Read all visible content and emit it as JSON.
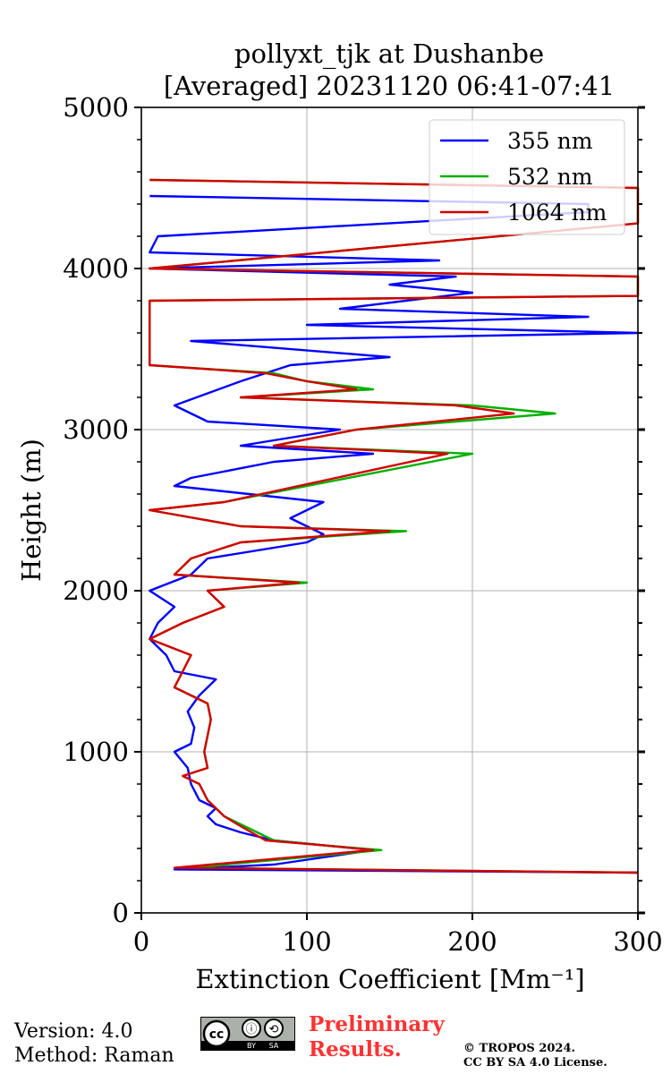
{
  "chart_data": {
    "type": "line",
    "title": "pollyxt_tjk at Dushanbe",
    "subtitle": "[Averaged] 20231120 06:41-07:41",
    "xlabel": "Extinction Coefficient [Mm⁻¹]",
    "ylabel": "Height (m)",
    "xlim": [
      0,
      300
    ],
    "ylim": [
      0,
      5000
    ],
    "x_ticks": [
      0,
      100,
      200,
      300
    ],
    "y_ticks": [
      0,
      1000,
      2000,
      3000,
      4000,
      5000
    ],
    "grid": true,
    "legend_position": "top-right",
    "series": [
      {
        "name": "355 nm",
        "color": "#0000ff",
        "points": [
          [
            300,
            250
          ],
          [
            20,
            270
          ],
          [
            80,
            300
          ],
          [
            140,
            390
          ],
          [
            110,
            420
          ],
          [
            80,
            450
          ],
          [
            60,
            500
          ],
          [
            45,
            550
          ],
          [
            40,
            600
          ],
          [
            45,
            650
          ],
          [
            35,
            700
          ],
          [
            30,
            800
          ],
          [
            28,
            900
          ],
          [
            20,
            1000
          ],
          [
            30,
            1050
          ],
          [
            32,
            1150
          ],
          [
            28,
            1250
          ],
          [
            35,
            1350
          ],
          [
            45,
            1450
          ],
          [
            20,
            1500
          ],
          [
            15,
            1600
          ],
          [
            5,
            1700
          ],
          [
            10,
            1800
          ],
          [
            20,
            1900
          ],
          [
            5,
            2000
          ],
          [
            30,
            2100
          ],
          [
            40,
            2200
          ],
          [
            100,
            2300
          ],
          [
            110,
            2350
          ],
          [
            100,
            2400
          ],
          [
            90,
            2450
          ],
          [
            110,
            2550
          ],
          [
            20,
            2650
          ],
          [
            30,
            2700
          ],
          [
            80,
            2800
          ],
          [
            140,
            2850
          ],
          [
            60,
            2900
          ],
          [
            90,
            2950
          ],
          [
            120,
            3000
          ],
          [
            40,
            3050
          ],
          [
            20,
            3150
          ],
          [
            60,
            3300
          ],
          [
            90,
            3400
          ],
          [
            150,
            3450
          ],
          [
            30,
            3550
          ],
          [
            300,
            3600
          ],
          [
            100,
            3650
          ],
          [
            270,
            3700
          ],
          [
            120,
            3750
          ],
          [
            200,
            3850
          ],
          [
            150,
            3900
          ],
          [
            190,
            3950
          ],
          [
            5,
            4000
          ],
          [
            180,
            4050
          ],
          [
            5,
            4100
          ],
          [
            10,
            4200
          ],
          [
            270,
            4350
          ],
          [
            270,
            4400
          ],
          [
            5,
            4450
          ]
        ]
      },
      {
        "name": "532 nm",
        "color": "#00b000",
        "points": [
          [
            300,
            250
          ],
          [
            30,
            280
          ],
          [
            145,
            390
          ],
          [
            110,
            420
          ],
          [
            80,
            450
          ],
          [
            60,
            550
          ],
          [
            50,
            600
          ],
          [
            40,
            700
          ],
          [
            35,
            800
          ],
          [
            25,
            850
          ],
          [
            40,
            900
          ],
          [
            38,
            1000
          ],
          [
            40,
            1100
          ],
          [
            42,
            1200
          ],
          [
            40,
            1300
          ],
          [
            20,
            1400
          ],
          [
            25,
            1500
          ],
          [
            30,
            1600
          ],
          [
            5,
            1700
          ],
          [
            25,
            1800
          ],
          [
            50,
            1900
          ],
          [
            40,
            2000
          ],
          [
            100,
            2050
          ],
          [
            20,
            2100
          ],
          [
            30,
            2200
          ],
          [
            60,
            2300
          ],
          [
            160,
            2370
          ],
          [
            60,
            2400
          ],
          [
            5,
            2500
          ],
          [
            50,
            2550
          ],
          [
            200,
            2850
          ],
          [
            80,
            2900
          ],
          [
            130,
            3000
          ],
          [
            250,
            3100
          ],
          [
            200,
            3150
          ],
          [
            60,
            3200
          ],
          [
            140,
            3250
          ],
          [
            100,
            3300
          ],
          [
            80,
            3350
          ],
          [
            5,
            3400
          ],
          [
            5,
            3800
          ],
          [
            300,
            3830
          ],
          [
            300,
            3950
          ],
          [
            5,
            4000
          ],
          [
            300,
            4280
          ],
          [
            300,
            4500
          ],
          [
            5,
            4550
          ]
        ]
      },
      {
        "name": "1064 nm",
        "color": "#d40000",
        "points": [
          [
            300,
            250
          ],
          [
            20,
            280
          ],
          [
            140,
            390
          ],
          [
            110,
            420
          ],
          [
            75,
            450
          ],
          [
            58,
            550
          ],
          [
            50,
            600
          ],
          [
            40,
            700
          ],
          [
            35,
            800
          ],
          [
            25,
            850
          ],
          [
            40,
            900
          ],
          [
            38,
            1000
          ],
          [
            40,
            1100
          ],
          [
            42,
            1200
          ],
          [
            40,
            1300
          ],
          [
            20,
            1400
          ],
          [
            25,
            1500
          ],
          [
            30,
            1600
          ],
          [
            5,
            1700
          ],
          [
            25,
            1800
          ],
          [
            50,
            1900
          ],
          [
            40,
            2000
          ],
          [
            95,
            2050
          ],
          [
            20,
            2100
          ],
          [
            30,
            2200
          ],
          [
            60,
            2300
          ],
          [
            150,
            2370
          ],
          [
            60,
            2400
          ],
          [
            5,
            2500
          ],
          [
            50,
            2550
          ],
          [
            185,
            2850
          ],
          [
            80,
            2900
          ],
          [
            130,
            3000
          ],
          [
            225,
            3100
          ],
          [
            190,
            3150
          ],
          [
            60,
            3200
          ],
          [
            130,
            3250
          ],
          [
            100,
            3300
          ],
          [
            75,
            3350
          ],
          [
            5,
            3400
          ],
          [
            5,
            3800
          ],
          [
            300,
            3830
          ],
          [
            300,
            3950
          ],
          [
            5,
            4000
          ],
          [
            300,
            4280
          ],
          [
            300,
            4500
          ],
          [
            5,
            4550
          ]
        ]
      }
    ]
  },
  "footer": {
    "version": "Version: 4.0",
    "method": "Method: Raman",
    "preliminary_line1": "Preliminary",
    "preliminary_line2": "Results.",
    "copyright_line1": "© TROPOS 2024.",
    "copyright_line2": "CC BY SA 4.0 License.",
    "license_badge": {
      "icon": "cc-by-sa-icon",
      "label_by": "BY",
      "label_sa": "SA",
      "symbol_cc": "cc",
      "symbol_by": "ⓘ",
      "symbol_sa": "⟲"
    }
  }
}
